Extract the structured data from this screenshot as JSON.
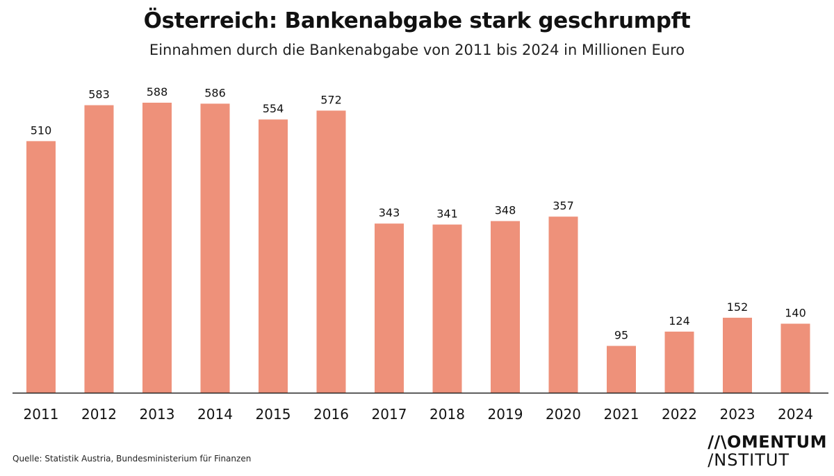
{
  "header": {
    "title": "Österreich: Bankenabgabe stark geschrumpft",
    "subtitle": "Einnahmen durch die Bankenabgabe von 2011 bis 2024 in Millionen Euro"
  },
  "footer": {
    "source": "Quelle: Statistik Austria, Bundesministerium für Finanzen",
    "logo_line1": "//\\OMENTUM",
    "logo_line2": "/NSTITUT"
  },
  "colors": {
    "bar": "#ee917a",
    "axis": "#222222",
    "text": "#111111"
  },
  "chart_data": {
    "type": "bar",
    "title": "Österreich: Bankenabgabe stark geschrumpft",
    "subtitle": "Einnahmen durch die Bankenabgabe von 2011 bis 2024 in Millionen Euro",
    "categories": [
      "2011",
      "2012",
      "2013",
      "2014",
      "2015",
      "2016",
      "2017",
      "2018",
      "2019",
      "2020",
      "2021",
      "2022",
      "2023",
      "2024"
    ],
    "values": [
      510,
      583,
      588,
      586,
      554,
      572,
      343,
      341,
      348,
      357,
      95,
      124,
      152,
      140
    ],
    "xlabel": "",
    "ylabel": "",
    "ylim": [
      0,
      600
    ],
    "grid": false,
    "legend": "none",
    "data_labels": true
  }
}
